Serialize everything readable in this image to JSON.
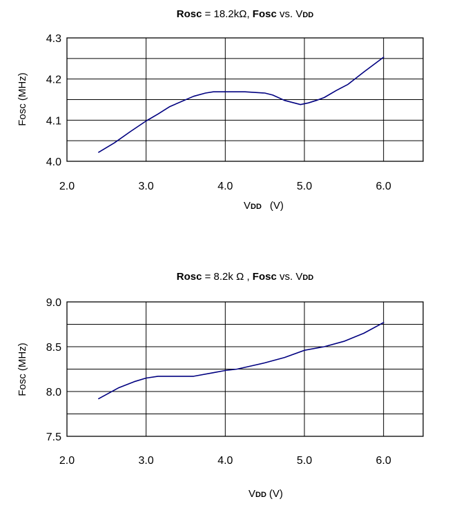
{
  "chart_data": [
    {
      "type": "line",
      "title": {
        "part1": "Rosc",
        "part2": " = 18.2kΩ, ",
        "part3": "Fosc",
        "part4": " vs. V",
        "part5": "DD"
      },
      "ylabel": "Fosc (MHz)",
      "xlabel": {
        "main": "V",
        "sub": "DD",
        "unit": "(V)"
      },
      "xlim": [
        2.0,
        6.5
      ],
      "ylim": [
        4.0,
        4.3
      ],
      "x_ticks": [
        "2.0",
        "3.0",
        "4.0",
        "5.0",
        "6.0"
      ],
      "y_ticks": [
        "4.0",
        "4.1",
        "4.2",
        "4.3"
      ],
      "grid": true,
      "line_color": "#000080",
      "series": [
        {
          "x": [
            2.4,
            2.6,
            2.8,
            3.0,
            3.15,
            3.3,
            3.6,
            3.75,
            3.85,
            4.0,
            4.25,
            4.5,
            4.6,
            4.75,
            4.95,
            5.05,
            5.15,
            5.25,
            5.4,
            5.55,
            5.75,
            6.0
          ],
          "y": [
            4.022,
            4.045,
            4.072,
            4.098,
            4.115,
            4.133,
            4.158,
            4.166,
            4.169,
            4.169,
            4.169,
            4.166,
            4.161,
            4.148,
            4.138,
            4.142,
            4.148,
            4.155,
            4.172,
            4.187,
            4.217,
            4.253
          ]
        }
      ]
    },
    {
      "type": "line",
      "title": {
        "part1": "Rosc",
        "part2": " = 8.2k Ω , ",
        "part3": "Fosc",
        "part4": " vs. V",
        "part5": "DD"
      },
      "ylabel": "Fosc (MHz)",
      "xlabel": {
        "main": "V",
        "sub": "DD",
        "unit": "(V)"
      },
      "xlim": [
        2.0,
        6.5
      ],
      "ylim": [
        7.5,
        9.0
      ],
      "x_ticks": [
        "2.0",
        "3.0",
        "4.0",
        "5.0",
        "6.0"
      ],
      "y_ticks": [
        "7.5",
        "8.0",
        "8.5",
        "9.0"
      ],
      "grid": true,
      "line_color": "#000080",
      "series": [
        {
          "x": [
            2.4,
            2.65,
            2.85,
            3.0,
            3.15,
            3.4,
            3.6,
            3.85,
            4.0,
            4.15,
            4.3,
            4.5,
            4.75,
            5.0,
            5.25,
            5.5,
            5.75,
            6.0
          ],
          "y": [
            7.92,
            8.04,
            8.11,
            8.15,
            8.17,
            8.17,
            8.17,
            8.21,
            8.235,
            8.25,
            8.28,
            8.32,
            8.38,
            8.46,
            8.5,
            8.56,
            8.65,
            8.77
          ]
        }
      ]
    }
  ]
}
